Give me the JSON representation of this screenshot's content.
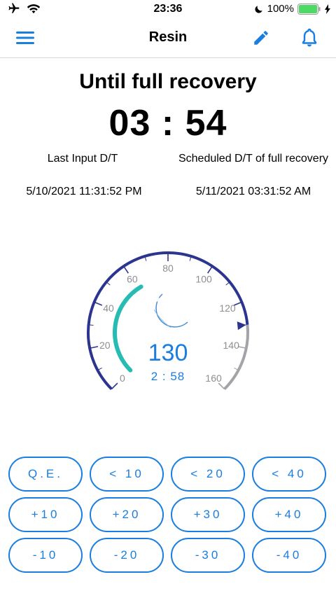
{
  "status_bar": {
    "time": "23:36",
    "battery_percent": "100%"
  },
  "nav": {
    "title": "Resin",
    "menu_icon": "hamburger-menu-icon",
    "edit_icon": "pencil-icon",
    "notify_icon": "bell-icon"
  },
  "main": {
    "heading": "Until full recovery",
    "countdown": "03 : 54",
    "last_input_label": "Last Input D/T",
    "scheduled_label": "Scheduled D/T of full recovery",
    "last_input_value": "5/10/2021 11:31:52 PM",
    "scheduled_value": "5/11/2021 03:31:52 AM"
  },
  "gauge": {
    "min": 0,
    "max": 160,
    "ticks": [
      "0",
      "20",
      "40",
      "60",
      "80",
      "100",
      "120",
      "140",
      "160"
    ],
    "current_value": 130,
    "current_label": "130",
    "time_to_next": "2 : 58",
    "colors": {
      "outer_filled": "#2b3590",
      "outer_remaining": "#a3a3a8",
      "inner_progress": "#26bcb3",
      "value_text": "#1a7de0"
    }
  },
  "buttons": [
    [
      "Q.E.",
      "< 10",
      "< 20",
      "< 40"
    ],
    [
      "+10",
      "+20",
      "+30",
      "+40"
    ],
    [
      "-10",
      "-20",
      "-30",
      "-40"
    ]
  ],
  "accent_color": "#1a7de0"
}
